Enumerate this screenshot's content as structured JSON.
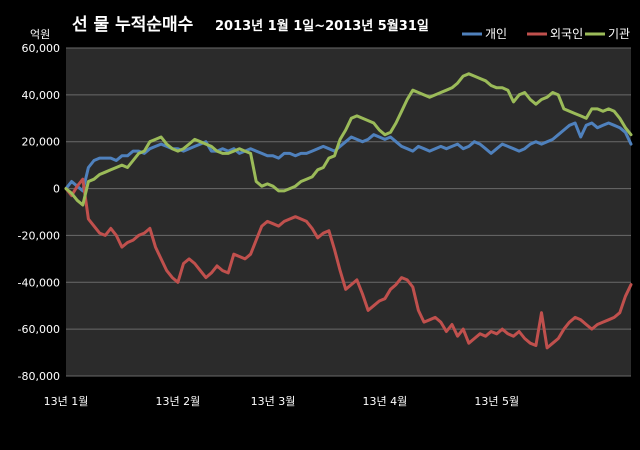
{
  "chart_data": {
    "type": "line",
    "title": "선 물 누적순매수",
    "subtitle": "2013년 1월 1일~2013년 5월31일",
    "unit_label": "억원",
    "ylim": [
      -80000,
      60000
    ],
    "y_ticks": [
      "60,000",
      "40,000",
      "20,000",
      "0",
      "-20,000",
      "-40,000",
      "-60,000",
      "-80,000"
    ],
    "y_tick_values": [
      60000,
      40000,
      20000,
      0,
      -20000,
      -40000,
      -60000,
      -80000
    ],
    "x_tick_labels": [
      "13년 1월",
      "13년 2월",
      "13년 3월",
      "13년 4월",
      "13년 5월"
    ],
    "x_tick_index": [
      0,
      20,
      37,
      57,
      77
    ],
    "num_points": 102,
    "grid": true,
    "legend_position": "top-right",
    "series": [
      {
        "name": "개인",
        "color": "#4F81BD",
        "values": [
          0,
          3000,
          1000,
          -1000,
          9000,
          12000,
          13000,
          13000,
          13000,
          12000,
          14000,
          14000,
          16000,
          16000,
          15000,
          17000,
          18000,
          19000,
          18000,
          17000,
          17000,
          16000,
          17000,
          18000,
          19000,
          20000,
          16000,
          16000,
          17000,
          16000,
          17000,
          15000,
          16000,
          17000,
          16000,
          15000,
          14000,
          14000,
          13000,
          15000,
          15000,
          14000,
          15000,
          15000,
          16000,
          17000,
          18000,
          17000,
          16000,
          18000,
          20000,
          22000,
          21000,
          20000,
          21000,
          23000,
          22000,
          21000,
          22000,
          20000,
          18000,
          17000,
          16000,
          18000,
          17000,
          16000,
          17000,
          18000,
          17000,
          18000,
          19000,
          17000,
          18000,
          20000,
          19000,
          17000,
          15000,
          17000,
          19000,
          18000,
          17000,
          16000,
          17000,
          19000,
          20000,
          19000,
          20000,
          21000,
          23000,
          25000,
          27000,
          28000,
          22000,
          27000,
          28000,
          26000,
          27000,
          28000,
          27000,
          26000,
          24000,
          19000
        ]
      },
      {
        "name": "외국인",
        "color": "#C0504D",
        "values": [
          0,
          -3000,
          1000,
          4000,
          -13000,
          -16000,
          -19000,
          -20000,
          -17000,
          -20000,
          -25000,
          -23000,
          -22000,
          -20000,
          -19000,
          -17000,
          -25000,
          -30000,
          -35000,
          -38000,
          -40000,
          -32000,
          -30000,
          -32000,
          -35000,
          -38000,
          -36000,
          -33000,
          -35000,
          -36000,
          -28000,
          -29000,
          -30000,
          -28000,
          -22000,
          -16000,
          -14000,
          -15000,
          -16000,
          -14000,
          -13000,
          -12000,
          -13000,
          -14000,
          -17000,
          -21000,
          -19000,
          -18000,
          -26000,
          -35000,
          -43000,
          -41000,
          -39000,
          -45000,
          -52000,
          -50000,
          -48000,
          -47000,
          -43000,
          -41000,
          -38000,
          -39000,
          -42000,
          -52000,
          -57000,
          -56000,
          -55000,
          -57000,
          -61000,
          -58000,
          -63000,
          -60000,
          -66000,
          -64000,
          -62000,
          -63000,
          -61000,
          -62000,
          -60000,
          -62000,
          -63000,
          -61000,
          -64000,
          -66000,
          -67000,
          -53000,
          -68000,
          -66000,
          -64000,
          -60000,
          -57000,
          -55000,
          -56000,
          -58000,
          -60000,
          -58000,
          -57000,
          -56000,
          -55000,
          -53000,
          -46000,
          -41000
        ]
      },
      {
        "name": "기관",
        "color": "#9BBB59",
        "values": [
          0,
          -2000,
          -5000,
          -7000,
          3000,
          4000,
          6000,
          7000,
          8000,
          9000,
          10000,
          9000,
          12000,
          15000,
          16000,
          20000,
          21000,
          22000,
          19000,
          17000,
          16000,
          17000,
          19000,
          21000,
          20000,
          19000,
          18000,
          16000,
          15000,
          15000,
          16000,
          17000,
          16000,
          15000,
          3000,
          1000,
          2000,
          1000,
          -1000,
          -1000,
          0,
          1000,
          3000,
          4000,
          5000,
          8000,
          9000,
          13000,
          14000,
          21000,
          25000,
          30000,
          31000,
          30000,
          29000,
          28000,
          25000,
          23000,
          24000,
          28000,
          33000,
          38000,
          42000,
          41000,
          40000,
          39000,
          40000,
          41000,
          42000,
          43000,
          45000,
          48000,
          49000,
          48000,
          47000,
          46000,
          44000,
          43000,
          43000,
          42000,
          37000,
          40000,
          41000,
          38000,
          36000,
          38000,
          39000,
          41000,
          40000,
          34000,
          33000,
          32000,
          31000,
          30000,
          34000,
          34000,
          33000,
          34000,
          33000,
          30000,
          26000,
          23000
        ]
      }
    ]
  }
}
